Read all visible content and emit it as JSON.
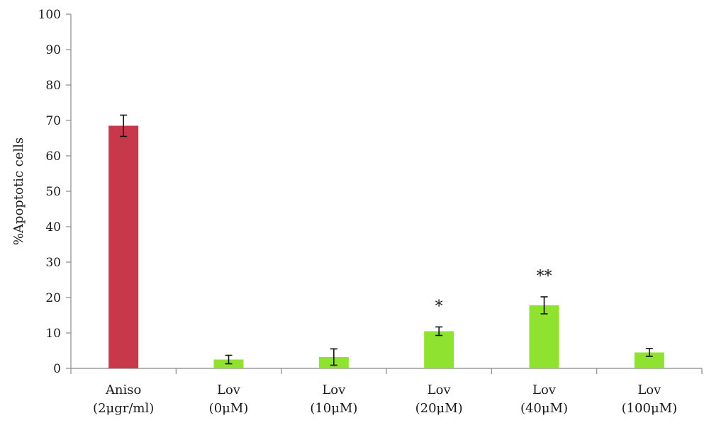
{
  "chart_data": {
    "type": "bar",
    "title": "",
    "xlabel": "",
    "ylabel": "%Apoptotic cells",
    "ylim": [
      0,
      100
    ],
    "yticks": [
      0,
      10,
      20,
      30,
      40,
      50,
      60,
      70,
      80,
      90,
      100
    ],
    "grid": false,
    "categories": [
      [
        "Aniso",
        "(2μgr/ml)"
      ],
      [
        "Lov",
        "(0μM)"
      ],
      [
        "Lov",
        "(10μM)"
      ],
      [
        "Lov",
        "(20μM)"
      ],
      [
        "Lov",
        "(40μM)"
      ],
      [
        "Lov",
        "(100μM)"
      ]
    ],
    "values": [
      68.5,
      2.5,
      3.2,
      10.5,
      17.8,
      4.5
    ],
    "errors": [
      3.0,
      1.2,
      2.3,
      1.2,
      2.4,
      1.1
    ],
    "significance": [
      "",
      "",
      "",
      "*",
      "**",
      ""
    ],
    "colors": [
      "#c8384b",
      "#8fe22f",
      "#8fe22f",
      "#8fe22f",
      "#8fe22f",
      "#8fe22f"
    ]
  }
}
